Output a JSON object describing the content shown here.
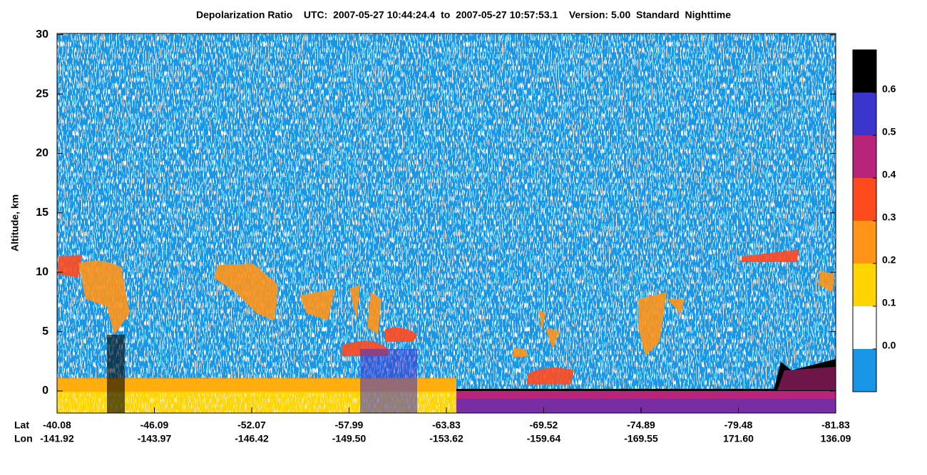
{
  "chart_data": {
    "type": "curtain",
    "title": "Depolarization Ratio    UTC:  2007-05-27 10:44:24.4  to  2007-05-27 10:57:53.1    Version: 5.00  Standard  Nighttime",
    "y_label": "Altitude, km",
    "ylim": [
      -1.86,
      30.1
    ],
    "yticks": [
      0,
      5,
      10,
      15,
      20,
      25,
      30
    ],
    "x_row_names": [
      "Lat",
      "Lon"
    ],
    "lat": [
      "-40.08",
      "-46.09",
      "-52.07",
      "-57.99",
      "-63.83",
      "-69.52",
      "-74.89",
      "-79.48",
      "-81.83"
    ],
    "lon": [
      "-141.92",
      "-143.97",
      "-146.42",
      "-149.50",
      "-153.62",
      "-159.64",
      "-169.55",
      "171.60",
      "136.09"
    ],
    "colorbar": {
      "lim": [
        -0.1,
        0.7
      ],
      "colors": [
        "#1a96e6",
        "#ffffff",
        "#ffd400",
        "#ff9418",
        "#ff4a1e",
        "#b8247a",
        "#3a35cc",
        "#000000"
      ],
      "ticks": [
        {
          "value": 0,
          "label": "0.0"
        },
        0.1,
        0.2,
        0.3,
        0.4,
        0.5,
        0.6
      ]
    }
  }
}
